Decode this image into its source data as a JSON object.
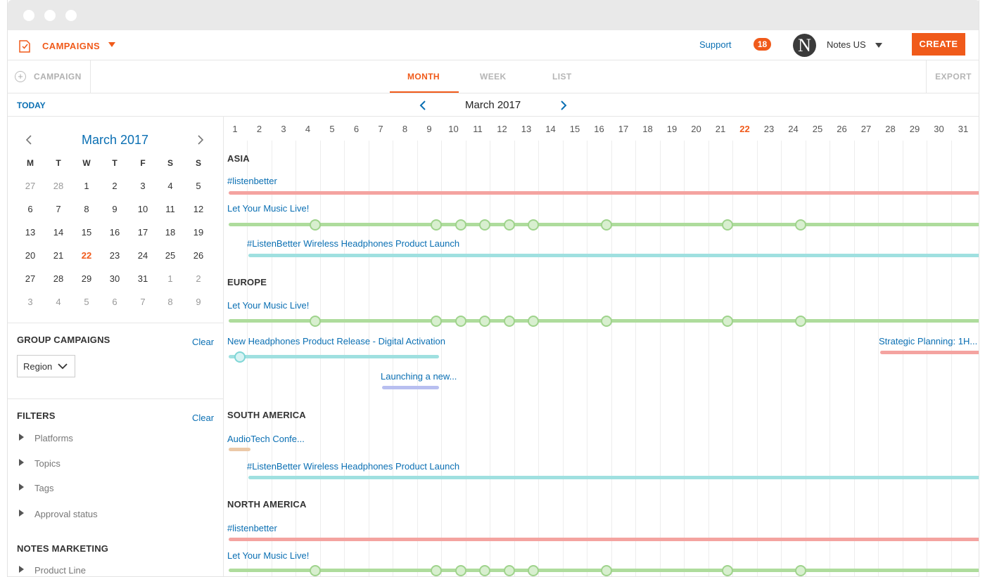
{
  "app": {
    "section_title": "CAMPAIGNS",
    "support_label": "Support",
    "notification_count": "18",
    "avatar_letter": "N",
    "account_name": "Notes US",
    "create_label": "CREATE"
  },
  "toolbar": {
    "add_campaign_label": "CAMPAIGN",
    "add_icon": "+",
    "tabs": [
      "MONTH",
      "WEEK",
      "LIST"
    ],
    "active_tab": "MONTH",
    "export_label": "EXPORT",
    "today_label": "TODAY",
    "month_label": "March 2017"
  },
  "mini_calendar": {
    "title": "March 2017",
    "weekdays": [
      "M",
      "T",
      "W",
      "T",
      "F",
      "S",
      "S"
    ],
    "weeks": [
      [
        "27",
        "28",
        "1",
        "2",
        "3",
        "4",
        "5"
      ],
      [
        "6",
        "7",
        "8",
        "9",
        "10",
        "11",
        "12"
      ],
      [
        "13",
        "14",
        "15",
        "16",
        "17",
        "18",
        "19"
      ],
      [
        "20",
        "21",
        "22",
        "23",
        "24",
        "25",
        "26"
      ],
      [
        "27",
        "28",
        "29",
        "30",
        "31",
        "1",
        "2"
      ],
      [
        "3",
        "4",
        "5",
        "6",
        "7",
        "8",
        "9"
      ]
    ],
    "today": "22"
  },
  "sidebar": {
    "group_title": "GROUP CAMPAIGNS",
    "group_clear": "Clear",
    "group_select_value": "Region",
    "filters_title": "FILTERS",
    "filters_clear": "Clear",
    "filters": [
      "Platforms",
      "Topics",
      "Tags",
      "Approval status"
    ],
    "notes_title": "NOTES MARKETING",
    "notes_items": [
      "Product Line"
    ]
  },
  "timeline": {
    "days": [
      "1",
      "2",
      "3",
      "4",
      "5",
      "6",
      "7",
      "8",
      "9",
      "10",
      "11",
      "12",
      "13",
      "14",
      "15",
      "16",
      "17",
      "18",
      "19",
      "20",
      "21",
      "22",
      "23",
      "24",
      "25",
      "26",
      "27",
      "28",
      "29",
      "30",
      "31"
    ],
    "today": "22",
    "colors": {
      "red": "#f4a3a0",
      "green": "#aedc9c",
      "teal": "#9fe0e0",
      "purple": "#b8bff0",
      "tan": "#ecc9a8"
    },
    "regions": [
      {
        "name": "ASIA",
        "campaigns": [
          {
            "label": "#listenbetter",
            "color": "red",
            "start_day": 1,
            "end_day": 31,
            "markers": []
          },
          {
            "label": "Let Your Music Live!",
            "color": "green",
            "start_day": 1,
            "end_day": 31,
            "markers": [
              4,
              9,
              10,
              11,
              12,
              13,
              16,
              21,
              24
            ]
          },
          {
            "label": "#ListenBetter Wireless Headphones Product Launch",
            "color": "teal",
            "start_day": 2,
            "end_day": 31,
            "markers": []
          }
        ]
      },
      {
        "name": "EUROPE",
        "campaigns": [
          {
            "label": "Let Your Music Live!",
            "color": "green",
            "start_day": 1,
            "end_day": 31,
            "markers": [
              4,
              9,
              10,
              11,
              12,
              13,
              16,
              21,
              24
            ]
          },
          {
            "label": "New Headphones Product Release - Digital Activation",
            "color": "teal",
            "start_day": 1,
            "end_day": 9,
            "markers": [
              1
            ]
          },
          {
            "label": "Strategic Planning: 1H...",
            "color": "red",
            "start_day": 28,
            "end_day": 31,
            "markers": []
          },
          {
            "label": "Launching a new...",
            "color": "purple",
            "start_day": 7,
            "end_day": 9,
            "markers": []
          }
        ]
      },
      {
        "name": "SOUTH AMERICA",
        "campaigns": [
          {
            "label": "AudioTech Confe...",
            "color": "tan",
            "start_day": 1,
            "end_day": 1,
            "markers": []
          },
          {
            "label": "#ListenBetter Wireless Headphones Product Launch",
            "color": "teal",
            "start_day": 2,
            "end_day": 31,
            "markers": []
          }
        ]
      },
      {
        "name": "NORTH AMERICA",
        "campaigns": [
          {
            "label": "#listenbetter",
            "color": "red",
            "start_day": 1,
            "end_day": 31,
            "markers": []
          },
          {
            "label": "Let Your Music Live!",
            "color": "green",
            "start_day": 1,
            "end_day": 31,
            "markers": [
              4,
              9,
              10,
              11,
              12,
              13,
              16,
              21,
              24
            ]
          }
        ]
      }
    ]
  }
}
